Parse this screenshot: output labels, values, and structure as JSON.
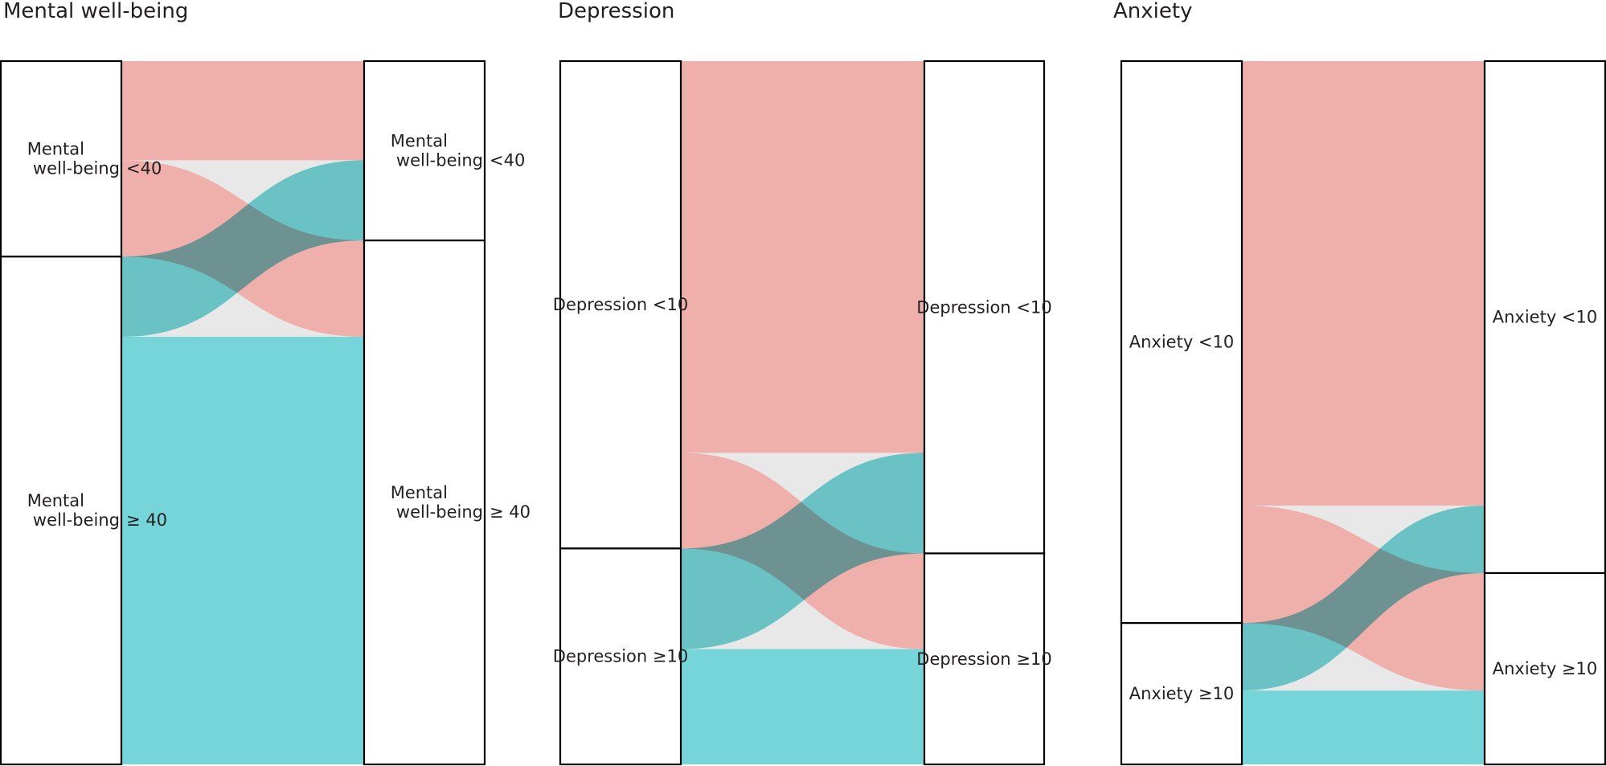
{
  "colors": {
    "flow_from_first": "#efafab",
    "flow_from_second": "#75d5d8",
    "gap": "#e8e8e8",
    "node_stroke": "#000000"
  },
  "chart_data": [
    {
      "type": "alluvial",
      "title": "Mental well-being",
      "left_nodes": [
        {
          "name": "Mental well-being <40",
          "lines": [
            "Mental",
            "well-being",
            "<40"
          ]
        },
        {
          "name": "Mental well-being ≥ 40",
          "lines": [
            "Mental",
            "well-being",
            "≥ 40"
          ]
        }
      ],
      "right_nodes": [
        {
          "name": "Mental well-being <40",
          "lines": [
            "Mental",
            "well-being",
            "<40"
          ]
        },
        {
          "name": "Mental well-being ≥ 40",
          "lines": [
            "Mental",
            "well-being",
            "≥ 40"
          ]
        }
      ],
      "flows": [
        {
          "from": 0,
          "to": 0,
          "value": 14.1
        },
        {
          "from": 0,
          "to": 1,
          "value": 13.7
        },
        {
          "from": 1,
          "to": 0,
          "value": 11.4
        },
        {
          "from": 1,
          "to": 1,
          "value": 60.8
        }
      ]
    },
    {
      "type": "alluvial",
      "title": "Depression",
      "left_nodes": [
        {
          "name": "Depression <10",
          "lines": [
            "Depression <10"
          ]
        },
        {
          "name": "Depression ≥10",
          "lines": [
            "Depression ≥10"
          ]
        }
      ],
      "right_nodes": [
        {
          "name": "Depression <10",
          "lines": [
            "Depression <10"
          ]
        },
        {
          "name": "Depression ≥10",
          "lines": [
            "Depression ≥10"
          ]
        }
      ],
      "flows": [
        {
          "from": 0,
          "to": 0,
          "value": 55.7
        },
        {
          "from": 0,
          "to": 1,
          "value": 13.6
        },
        {
          "from": 1,
          "to": 0,
          "value": 14.3
        },
        {
          "from": 1,
          "to": 1,
          "value": 16.4
        }
      ]
    },
    {
      "type": "alluvial",
      "title": "Anxiety",
      "left_nodes": [
        {
          "name": "Anxiety <10",
          "lines": [
            "Anxiety <10"
          ]
        },
        {
          "name": "Anxiety ≥10",
          "lines": [
            "Anxiety ≥10"
          ]
        }
      ],
      "right_nodes": [
        {
          "name": "Anxiety <10",
          "lines": [
            "Anxiety <10"
          ]
        },
        {
          "name": "Anxiety ≥10",
          "lines": [
            "Anxiety ≥10"
          ]
        }
      ],
      "flows": [
        {
          "from": 0,
          "to": 0,
          "value": 63.2
        },
        {
          "from": 0,
          "to": 1,
          "value": 16.7
        },
        {
          "from": 1,
          "to": 0,
          "value": 9.6
        },
        {
          "from": 1,
          "to": 1,
          "value": 10.5
        }
      ]
    }
  ]
}
